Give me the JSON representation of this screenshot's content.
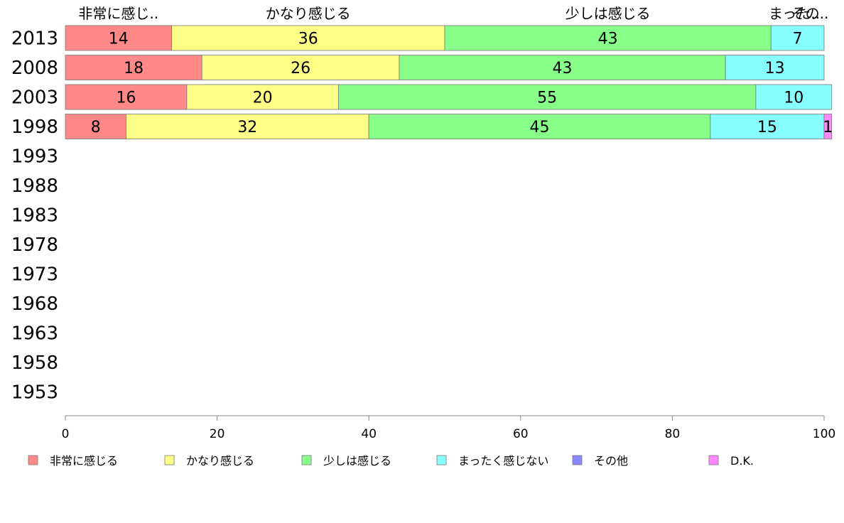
{
  "chart_data": {
    "type": "bar",
    "orientation": "horizontal",
    "stacked": true,
    "categories": [
      "2013",
      "2008",
      "2003",
      "1998",
      "1993",
      "1988",
      "1983",
      "1978",
      "1973",
      "1968",
      "1963",
      "1958",
      "1953"
    ],
    "series": [
      {
        "name": "非常に感じる",
        "short_label": "非常に感じ..",
        "color": "#ff8888",
        "values": [
          14,
          18,
          16,
          8,
          null,
          null,
          null,
          null,
          null,
          null,
          null,
          null,
          null
        ]
      },
      {
        "name": "かなり感じる",
        "short_label": "かなり感じる",
        "color": "#ffff88",
        "values": [
          36,
          26,
          20,
          32,
          null,
          null,
          null,
          null,
          null,
          null,
          null,
          null,
          null
        ]
      },
      {
        "name": "少しは感じる",
        "short_label": "少しは感じる",
        "color": "#88ff88",
        "values": [
          43,
          43,
          55,
          45,
          null,
          null,
          null,
          null,
          null,
          null,
          null,
          null,
          null
        ]
      },
      {
        "name": "まったく感じない",
        "short_label": "まった..",
        "color": "#88ffff",
        "values": [
          7,
          13,
          10,
          15,
          null,
          null,
          null,
          null,
          null,
          null,
          null,
          null,
          null
        ]
      },
      {
        "name": "その他",
        "short_label": "その..",
        "color": "#8888ff",
        "values": [
          0,
          0,
          0,
          0,
          null,
          null,
          null,
          null,
          null,
          null,
          null,
          null,
          null
        ]
      },
      {
        "name": "D.K.",
        "color": "#ff88ff",
        "values": [
          0,
          0,
          0,
          1,
          null,
          null,
          null,
          null,
          null,
          null,
          null,
          null,
          null
        ]
      }
    ],
    "x_ticks": [
      0,
      20,
      40,
      60,
      80,
      100
    ],
    "xlim": [
      0,
      100
    ],
    "grid": false,
    "legend_position": "bottom"
  }
}
